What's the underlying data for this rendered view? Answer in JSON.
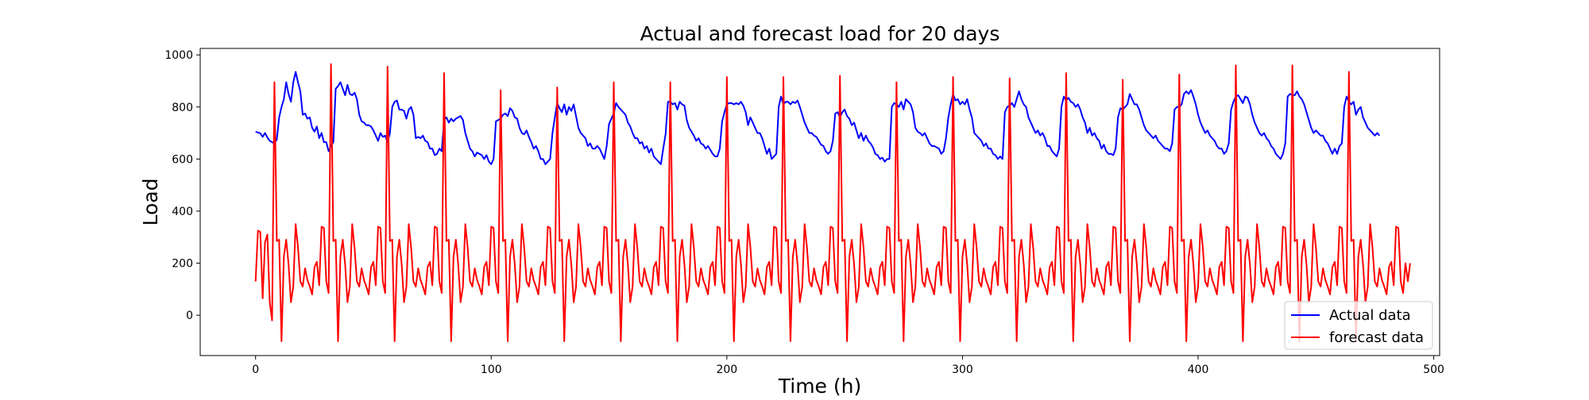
{
  "chart_data": {
    "type": "line",
    "title": "Actual and forecast load for 20 days",
    "xlabel": "Time (h)",
    "ylabel": "Load",
    "xlim": [
      -23.5,
      502.5
    ],
    "ylim": [
      -155,
      1025
    ],
    "xticks": [
      0,
      100,
      200,
      300,
      400,
      500
    ],
    "yticks": [
      0,
      200,
      400,
      600,
      800,
      1000
    ],
    "grid": false,
    "legend": {
      "position": "lower-right"
    },
    "series": [
      {
        "name": "Actual data",
        "color": "#0000ff",
        "x_start": 0,
        "x_step": 1,
        "values": [
          705,
          702,
          699,
          685,
          700,
          683,
          670,
          665,
          660,
          675,
          760,
          800,
          830,
          895,
          850,
          820,
          895,
          935,
          895,
          860,
          770,
          775,
          755,
          760,
          720,
          705,
          725,
          680,
          700,
          665,
          665,
          630,
          650,
          665,
          870,
          880,
          895,
          870,
          845,
          885,
          850,
          845,
          855,
          830,
          770,
          745,
          740,
          730,
          730,
          725,
          710,
          690,
          670,
          700,
          685,
          690,
          665,
          700,
          800,
          820,
          825,
          790,
          790,
          785,
          755,
          790,
          800,
          770,
          680,
          685,
          680,
          690,
          670,
          665,
          640,
          640,
          615,
          620,
          640,
          630,
          750,
          760,
          740,
          755,
          745,
          755,
          760,
          765,
          750,
          700,
          670,
          640,
          630,
          610,
          625,
          620,
          615,
          600,
          615,
          590,
          580,
          600,
          745,
          750,
          755,
          770,
          775,
          765,
          795,
          785,
          760,
          755,
          720,
          700,
          695,
          710,
          685,
          665,
          640,
          650,
          630,
          600,
          600,
          580,
          590,
          600,
          700,
          760,
          815,
          795,
          780,
          810,
          770,
          800,
          785,
          810,
          765,
          720,
          700,
          690,
          680,
          650,
          660,
          640,
          640,
          650,
          640,
          620,
          600,
          650,
          735,
          755,
          775,
          815,
          800,
          790,
          780,
          770,
          740,
          725,
          700,
          680,
          680,
          660,
          665,
          640,
          650,
          625,
          640,
          610,
          600,
          590,
          580,
          640,
          695,
          820,
          820,
          810,
          815,
          790,
          820,
          810,
          805,
          750,
          720,
          705,
          690,
          670,
          680,
          660,
          655,
          640,
          650,
          635,
          620,
          610,
          610,
          640,
          745,
          780,
          810,
          815,
          815,
          810,
          815,
          810,
          820,
          805,
          780,
          730,
          760,
          740,
          720,
          700,
          700,
          680,
          650,
          620,
          640,
          600,
          610,
          620,
          800,
          840,
          810,
          820,
          820,
          810,
          820,
          815,
          825,
          800,
          770,
          740,
          720,
          700,
          700,
          690,
          685,
          670,
          655,
          650,
          630,
          620,
          630,
          670,
          775,
          780,
          760,
          780,
          790,
          765,
          755,
          730,
          740,
          710,
          680,
          700,
          670,
          690,
          670,
          660,
          645,
          620,
          615,
          600,
          605,
          590,
          600,
          600,
          800,
          815,
          810,
          800,
          820,
          790,
          830,
          820,
          810,
          780,
          720,
          705,
          700,
          690,
          700,
          680,
          660,
          650,
          650,
          645,
          640,
          620,
          630,
          680,
          760,
          810,
          850,
          825,
          830,
          810,
          820,
          810,
          830,
          790,
          760,
          700,
          690,
          680,
          670,
          650,
          660,
          640,
          640,
          620,
          615,
          600,
          610,
          600,
          780,
          800,
          805,
          815,
          800,
          830,
          860,
          830,
          810,
          800,
          760,
          740,
          720,
          700,
          710,
          690,
          700,
          680,
          650,
          650,
          630,
          620,
          610,
          640,
          800,
          840,
          825,
          835,
          820,
          815,
          800,
          810,
          790,
          760,
          740,
          700,
          720,
          690,
          700,
          680,
          670,
          640,
          655,
          630,
          620,
          620,
          615,
          640,
          760,
          795,
          790,
          800,
          810,
          850,
          830,
          810,
          810,
          790,
          760,
          730,
          710,
          700,
          690,
          680,
          690,
          670,
          660,
          650,
          640,
          640,
          630,
          660,
          790,
          800,
          800,
          810,
          850,
          860,
          850,
          865,
          840,
          810,
          770,
          740,
          720,
          700,
          710,
          690,
          680,
          670,
          650,
          640,
          640,
          620,
          630,
          660,
          790,
          820,
          840,
          845,
          830,
          815,
          840,
          835,
          810,
          770,
          740,
          720,
          700,
          690,
          700,
          680,
          670,
          650,
          640,
          620,
          610,
          600,
          620,
          660,
          840,
          850,
          845,
          845,
          860,
          840,
          830,
          810,
          780,
          750,
          720,
          700,
          710,
          700,
          690,
          690,
          670,
          660,
          640,
          620,
          640,
          620,
          650,
          660,
          800,
          840,
          820,
          810,
          820,
          770,
          790,
          800,
          760,
          740,
          720,
          710,
          700,
          690,
          700,
          690
        ]
      },
      {
        "name": "forecast data",
        "color": "#ff0000",
        "x_start": 0,
        "x_step": 1,
        "values": [
          130,
          325,
          320,
          65,
          280,
          310,
          50,
          -20,
          895,
          285,
          290,
          -100,
          225,
          290,
          195,
          50,
          110,
          350,
          260,
          130,
          110,
          180,
          135,
          110,
          80,
          185,
          205,
          115,
          340,
          335,
          130,
          85,
          965,
          285,
          290,
          -100,
          225,
          290,
          195,
          50,
          110,
          350,
          260,
          130,
          110,
          180,
          135,
          110,
          80,
          185,
          205,
          115,
          340,
          335,
          130,
          85,
          955,
          285,
          290,
          -100,
          225,
          290,
          195,
          50,
          110,
          350,
          260,
          130,
          110,
          180,
          135,
          110,
          80,
          185,
          205,
          115,
          340,
          335,
          130,
          85,
          930,
          285,
          290,
          -100,
          225,
          290,
          195,
          50,
          110,
          350,
          260,
          130,
          110,
          180,
          135,
          110,
          80,
          185,
          205,
          115,
          340,
          335,
          130,
          85,
          865,
          285,
          290,
          -100,
          225,
          290,
          195,
          50,
          110,
          350,
          260,
          130,
          110,
          180,
          135,
          110,
          80,
          185,
          205,
          115,
          340,
          335,
          130,
          85,
          875,
          285,
          290,
          -100,
          225,
          290,
          195,
          50,
          110,
          350,
          260,
          130,
          110,
          180,
          135,
          110,
          80,
          185,
          205,
          115,
          340,
          335,
          130,
          85,
          895,
          285,
          290,
          -100,
          225,
          290,
          195,
          50,
          110,
          350,
          260,
          130,
          110,
          180,
          135,
          110,
          80,
          185,
          205,
          115,
          340,
          335,
          130,
          85,
          895,
          285,
          290,
          -100,
          225,
          290,
          195,
          50,
          110,
          350,
          260,
          130,
          110,
          180,
          135,
          110,
          80,
          185,
          205,
          115,
          340,
          335,
          130,
          85,
          915,
          285,
          290,
          -100,
          225,
          290,
          195,
          50,
          110,
          350,
          260,
          130,
          110,
          180,
          135,
          110,
          80,
          185,
          205,
          115,
          340,
          335,
          130,
          85,
          915,
          285,
          290,
          -100,
          225,
          290,
          195,
          50,
          110,
          350,
          260,
          130,
          110,
          180,
          135,
          110,
          80,
          185,
          205,
          115,
          340,
          335,
          130,
          85,
          920,
          285,
          290,
          -100,
          225,
          290,
          195,
          50,
          110,
          350,
          260,
          130,
          110,
          180,
          135,
          110,
          80,
          185,
          205,
          115,
          340,
          335,
          130,
          85,
          895,
          285,
          290,
          -100,
          225,
          290,
          195,
          50,
          110,
          350,
          260,
          130,
          110,
          180,
          135,
          110,
          80,
          185,
          205,
          115,
          340,
          335,
          130,
          85,
          915,
          285,
          290,
          -100,
          225,
          290,
          195,
          50,
          110,
          350,
          260,
          130,
          110,
          180,
          135,
          110,
          80,
          185,
          205,
          115,
          340,
          335,
          130,
          85,
          910,
          285,
          290,
          -100,
          225,
          290,
          195,
          50,
          110,
          350,
          260,
          130,
          110,
          180,
          135,
          110,
          80,
          185,
          205,
          115,
          340,
          335,
          130,
          85,
          930,
          285,
          290,
          -100,
          225,
          290,
          195,
          50,
          110,
          350,
          260,
          130,
          110,
          180,
          135,
          110,
          80,
          185,
          205,
          115,
          340,
          335,
          130,
          85,
          905,
          285,
          290,
          -100,
          225,
          290,
          195,
          50,
          110,
          350,
          260,
          130,
          110,
          180,
          135,
          110,
          80,
          185,
          205,
          115,
          340,
          335,
          130,
          85,
          925,
          285,
          290,
          -100,
          225,
          290,
          195,
          50,
          110,
          350,
          260,
          130,
          110,
          180,
          135,
          110,
          80,
          185,
          205,
          115,
          340,
          335,
          130,
          85,
          960,
          285,
          290,
          -100,
          225,
          290,
          195,
          50,
          110,
          350,
          260,
          130,
          110,
          180,
          135,
          110,
          80,
          185,
          205,
          115,
          340,
          335,
          130,
          85,
          960,
          285,
          290,
          -100,
          225,
          290,
          195,
          50,
          110,
          350,
          260,
          130,
          110,
          180,
          135,
          110,
          80,
          185,
          205,
          115,
          340,
          335,
          130,
          85,
          935,
          285,
          290,
          -100,
          225,
          290,
          195,
          50,
          110,
          350,
          260,
          130,
          110,
          180,
          135,
          110,
          80,
          185,
          205,
          115,
          340,
          335,
          130,
          85,
          200,
          130,
          200
        ]
      }
    ]
  }
}
